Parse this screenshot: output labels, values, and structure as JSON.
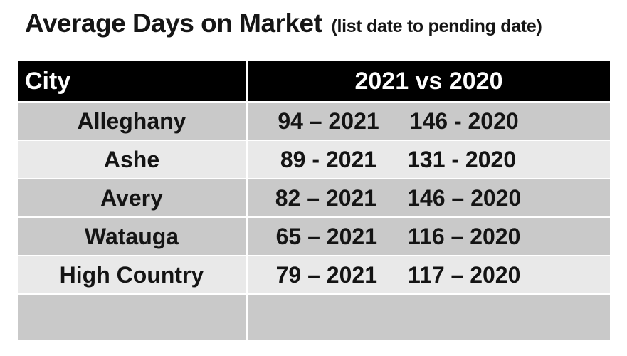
{
  "title": {
    "main": "Average Days on Market",
    "subtitle": "(list date to pending date)"
  },
  "table": {
    "header": {
      "city_label": "City",
      "comparison_label": "2021 vs 2020"
    },
    "rows": [
      {
        "city": "Alleghany",
        "value_2021": "94 – 2021",
        "value_2020": "146 - 2020",
        "shade": "dark"
      },
      {
        "city": "Ashe",
        "value_2021": "89 - 2021",
        "value_2020": "131 - 2020",
        "shade": "light"
      },
      {
        "city": "Avery",
        "value_2021": "82 – 2021",
        "value_2020": "146 – 2020",
        "shade": "dark"
      },
      {
        "city": "Watauga",
        "value_2021": "65 – 2021",
        "value_2020": "116 – 2020",
        "shade": "dark"
      },
      {
        "city": "High Country",
        "value_2021": "79 – 2021",
        "value_2020": "117 – 2020",
        "shade": "light"
      },
      {
        "city": "",
        "value_2021": "",
        "value_2020": "",
        "shade": "dark"
      }
    ],
    "colors": {
      "header_bg": "#000000",
      "header_text": "#fdfdfd",
      "row_dark": "#c9c9c9",
      "row_light": "#e9e9e9",
      "divider": "#ffffff",
      "body_text": "#141414"
    }
  },
  "chart_data": {
    "type": "table",
    "title": "Average Days on Market (list date to pending date)",
    "categories": [
      "Alleghany",
      "Ashe",
      "Avery",
      "Watauga",
      "High Country"
    ],
    "series": [
      {
        "name": "2021",
        "values": [
          94,
          89,
          82,
          65,
          79
        ]
      },
      {
        "name": "2020",
        "values": [
          146,
          131,
          146,
          116,
          117
        ]
      }
    ],
    "columns": [
      "City",
      "2021 vs 2020"
    ],
    "units": "days on market (list date to pending date)"
  }
}
